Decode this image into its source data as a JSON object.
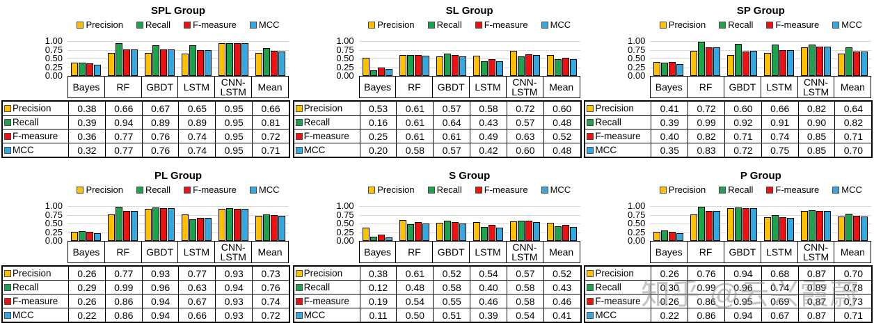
{
  "page": {
    "background": "#ffffff"
  },
  "palette": {
    "precision": "#FFC000",
    "recall": "#1FA24D",
    "f_measure": "#EE1111",
    "mcc": "#35A8E0",
    "bar_border": "#000000",
    "gridline": "#D9D9D9",
    "table_border": "#000000"
  },
  "watermark": {
    "text": "知乎 @云兴霞蔚",
    "color": "#8C8C8C"
  },
  "chart_data": [
    {
      "type": "bar",
      "title": "SPL Group",
      "ylim": [
        0,
        1
      ],
      "yticks": [
        "1.00",
        "0.75",
        "0.50",
        "0.25",
        "0.00"
      ],
      "grid": true,
      "legend_position": "top",
      "data_table": true,
      "categories": [
        "Bayes",
        "RF",
        "GBDT",
        "LSTM",
        "CNN-LSTM",
        "Mean"
      ],
      "series": [
        {
          "name": "Precision",
          "values": [
            0.38,
            0.66,
            0.67,
            0.65,
            0.95,
            0.66
          ]
        },
        {
          "name": "Recall",
          "values": [
            0.39,
            0.94,
            0.89,
            0.89,
            0.95,
            0.81
          ]
        },
        {
          "name": "F-measure",
          "values": [
            0.36,
            0.77,
            0.76,
            0.74,
            0.95,
            0.72
          ]
        },
        {
          "name": "MCC",
          "values": [
            0.32,
            0.77,
            0.76,
            0.74,
            0.95,
            0.71
          ]
        }
      ]
    },
    {
      "type": "bar",
      "title": "SL Group",
      "ylim": [
        0,
        1
      ],
      "yticks": [
        "1.00",
        "0.75",
        "0.50",
        "0.25",
        "0.00"
      ],
      "grid": true,
      "legend_position": "top",
      "data_table": true,
      "categories": [
        "Bayes",
        "RF",
        "GBDT",
        "LSTM",
        "CNN-LSTM",
        "Mean"
      ],
      "series": [
        {
          "name": "Precision",
          "values": [
            0.53,
            0.61,
            0.57,
            0.58,
            0.72,
            0.6
          ]
        },
        {
          "name": "Recall",
          "values": [
            0.16,
            0.61,
            0.64,
            0.43,
            0.57,
            0.48
          ]
        },
        {
          "name": "F-measure",
          "values": [
            0.25,
            0.61,
            0.61,
            0.49,
            0.63,
            0.52
          ]
        },
        {
          "name": "MCC",
          "values": [
            0.2,
            0.58,
            0.57,
            0.42,
            0.6,
            0.48
          ]
        }
      ]
    },
    {
      "type": "bar",
      "title": "SP Group",
      "ylim": [
        0,
        1
      ],
      "yticks": [
        "1.00",
        "0.75",
        "0.50",
        "0.25",
        "0.00"
      ],
      "grid": true,
      "legend_position": "top",
      "data_table": true,
      "categories": [
        "Bayes",
        "RF",
        "GBDT",
        "LSTM",
        "CNN-LSTM",
        "Mean"
      ],
      "series": [
        {
          "name": "Precision",
          "values": [
            0.41,
            0.72,
            0.6,
            0.66,
            0.82,
            0.64
          ]
        },
        {
          "name": "Recall",
          "values": [
            0.39,
            0.99,
            0.92,
            0.91,
            0.9,
            0.82
          ]
        },
        {
          "name": "F-measure",
          "values": [
            0.4,
            0.82,
            0.71,
            0.74,
            0.85,
            0.71
          ]
        },
        {
          "name": "MCC",
          "values": [
            0.35,
            0.83,
            0.72,
            0.75,
            0.85,
            0.7
          ]
        }
      ]
    },
    {
      "type": "bar",
      "title": "PL Group",
      "ylim": [
        0,
        1
      ],
      "yticks": [
        "1.00",
        "0.75",
        "0.50",
        "0.25",
        "0.00"
      ],
      "grid": true,
      "legend_position": "top",
      "data_table": true,
      "categories": [
        "Bayes",
        "RF",
        "GBDT",
        "LSTM",
        "CNN-LSTM",
        "Mean"
      ],
      "series": [
        {
          "name": "Precision",
          "values": [
            0.26,
            0.77,
            0.93,
            0.77,
            0.93,
            0.73
          ]
        },
        {
          "name": "Recall",
          "values": [
            0.29,
            0.99,
            0.96,
            0.63,
            0.94,
            0.76
          ]
        },
        {
          "name": "F-measure",
          "values": [
            0.26,
            0.86,
            0.94,
            0.67,
            0.93,
            0.74
          ]
        },
        {
          "name": "MCC",
          "values": [
            0.22,
            0.86,
            0.94,
            0.66,
            0.93,
            0.72
          ]
        }
      ]
    },
    {
      "type": "bar",
      "title": "S Group",
      "ylim": [
        0,
        1
      ],
      "yticks": [
        "1.00",
        "0.75",
        "0.50",
        "0.25",
        "0.00"
      ],
      "grid": true,
      "legend_position": "top",
      "data_table": true,
      "categories": [
        "Bayes",
        "RF",
        "GBDT",
        "LSTM",
        "CNN-LSTM",
        "Mean"
      ],
      "series": [
        {
          "name": "Precision",
          "values": [
            0.38,
            0.61,
            0.52,
            0.54,
            0.57,
            0.52
          ]
        },
        {
          "name": "Recall",
          "values": [
            0.12,
            0.48,
            0.58,
            0.4,
            0.58,
            0.43
          ]
        },
        {
          "name": "F-measure",
          "values": [
            0.19,
            0.54,
            0.55,
            0.46,
            0.58,
            0.46
          ]
        },
        {
          "name": "MCC",
          "values": [
            0.11,
            0.5,
            0.51,
            0.39,
            0.54,
            0.41
          ]
        }
      ]
    },
    {
      "type": "bar",
      "title": "P Group",
      "ylim": [
        0,
        1
      ],
      "yticks": [
        "1.00",
        "0.75",
        "0.50",
        "0.25",
        "0.00"
      ],
      "grid": true,
      "legend_position": "top",
      "data_table": true,
      "categories": [
        "Bayes",
        "RF",
        "GBDT",
        "LSTM",
        "CNN-LSTM",
        "Mean"
      ],
      "series": [
        {
          "name": "Precision",
          "values": [
            0.26,
            0.76,
            0.94,
            0.68,
            0.87,
            0.7
          ]
        },
        {
          "name": "Recall",
          "values": [
            0.3,
            0.99,
            0.96,
            0.74,
            0.89,
            0.78
          ]
        },
        {
          "name": "F-measure",
          "values": [
            0.26,
            0.86,
            0.95,
            0.69,
            0.87,
            0.73
          ]
        },
        {
          "name": "MCC",
          "values": [
            0.22,
            0.86,
            0.94,
            0.67,
            0.87,
            0.71
          ]
        }
      ]
    }
  ]
}
